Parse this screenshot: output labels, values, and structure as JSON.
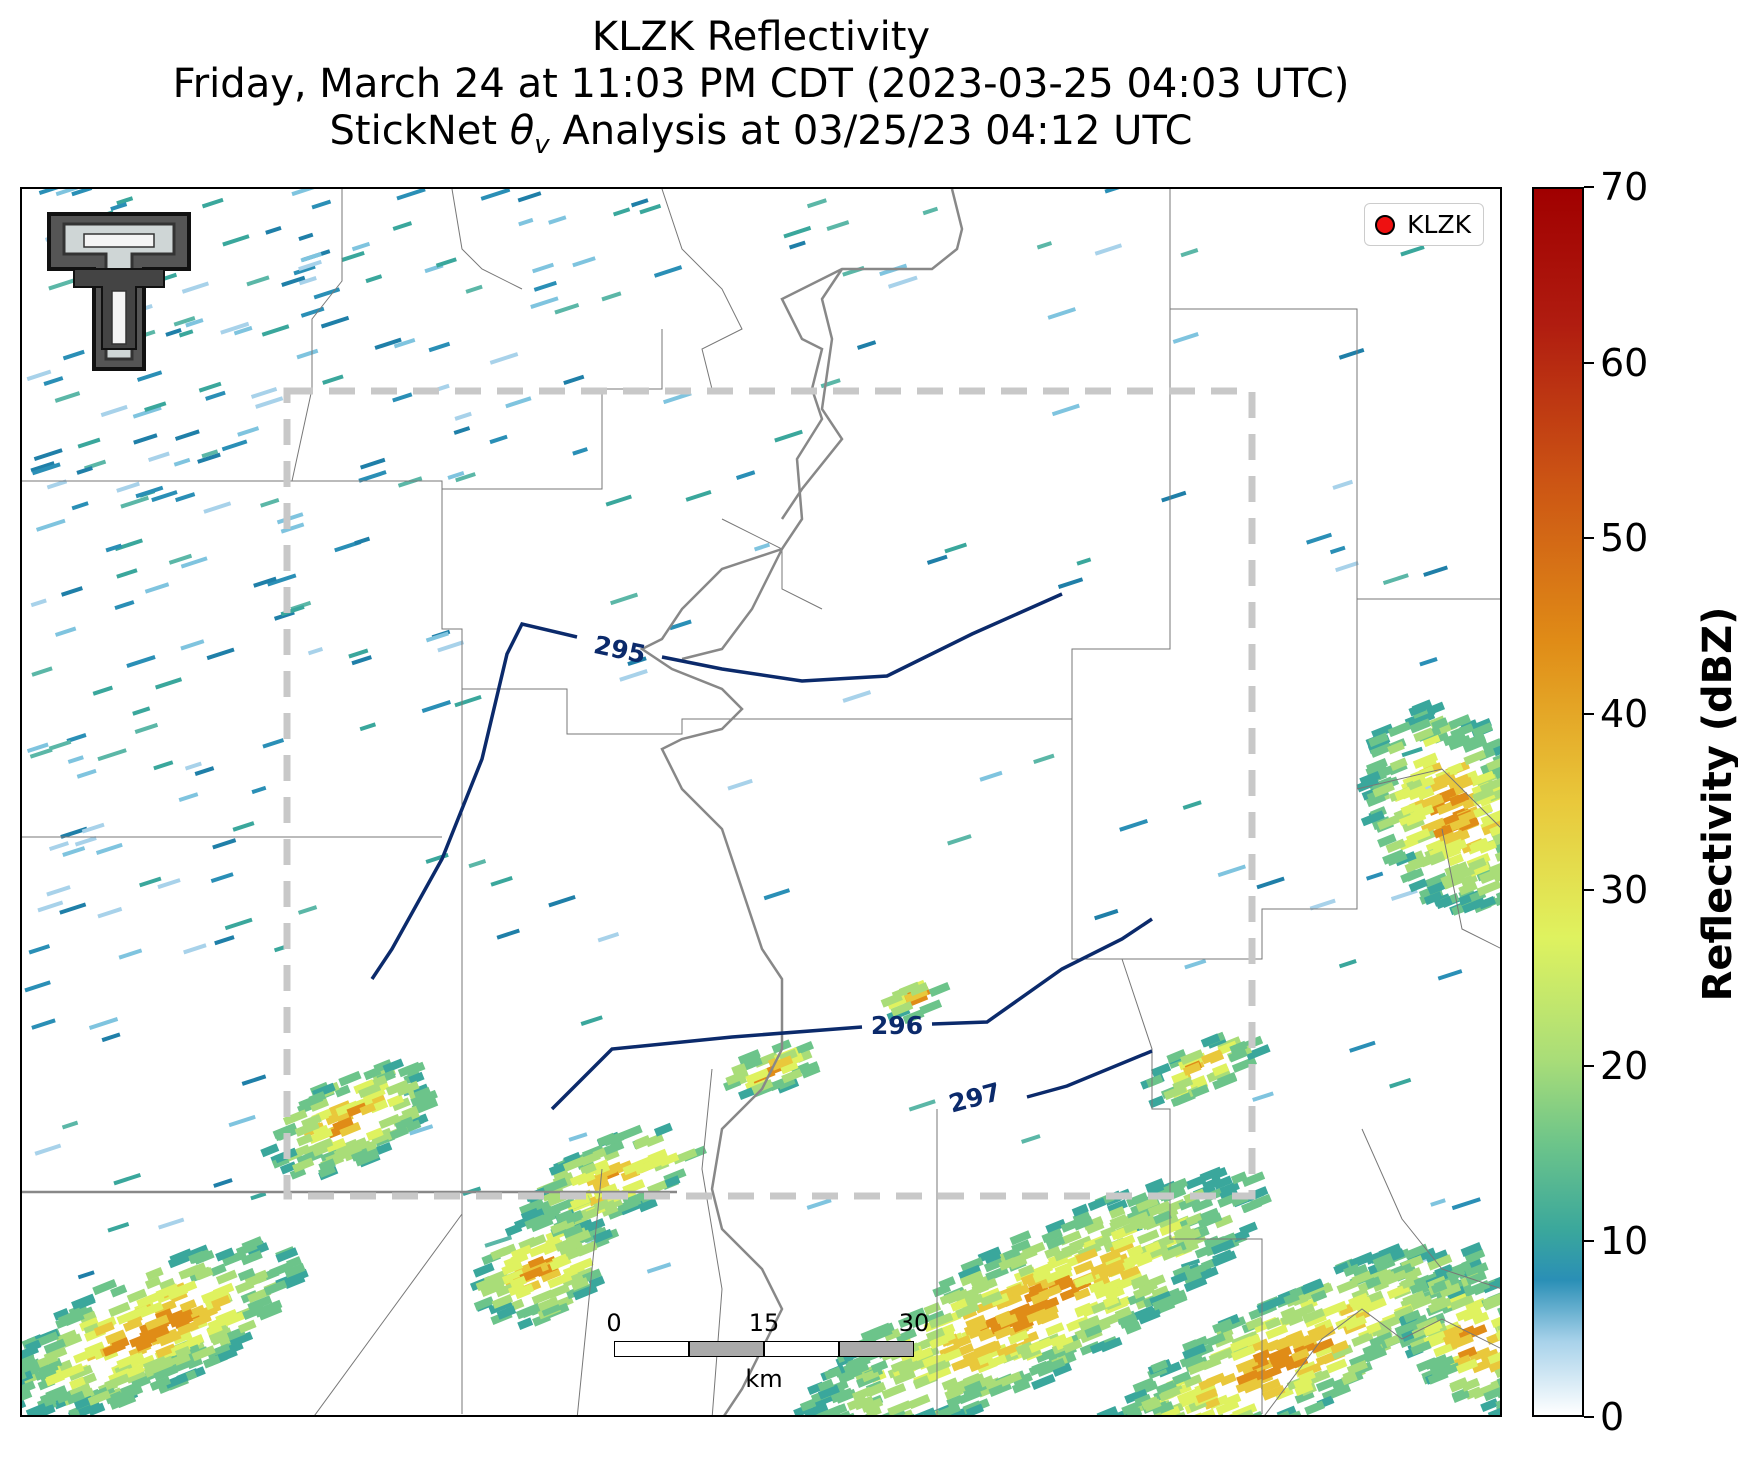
{
  "title": {
    "line1": "KLZK Reflectivity",
    "line2": "Friday, March 24 at 11:03 PM CDT (2023-03-25 04:03 UTC)",
    "line3_prefix": "StickNet ",
    "line3_symbol": "θ",
    "line3_subscript": "v",
    "line3_suffix": " Analysis at 03/25/23 04:12 UTC"
  },
  "legend": {
    "label": "KLZK",
    "marker_color": "#ee1111"
  },
  "scale_bar": {
    "ticks": [
      "0",
      "15",
      "30"
    ],
    "unit": "km"
  },
  "colorbar": {
    "label": "Reflectivity (dBZ)",
    "ticks": [
      "0",
      "10",
      "20",
      "30",
      "40",
      "50",
      "60",
      "70"
    ],
    "min": 0,
    "max": 70
  },
  "contours": [
    {
      "value": "295",
      "label": "295"
    },
    {
      "value": "296",
      "label": "296"
    },
    {
      "value": "297",
      "label": "297"
    }
  ],
  "contour_color": "#0b2a6b",
  "analysis_box_color": "#c8c8c8",
  "logo_icon": "texas-tech-double-t-icon"
}
